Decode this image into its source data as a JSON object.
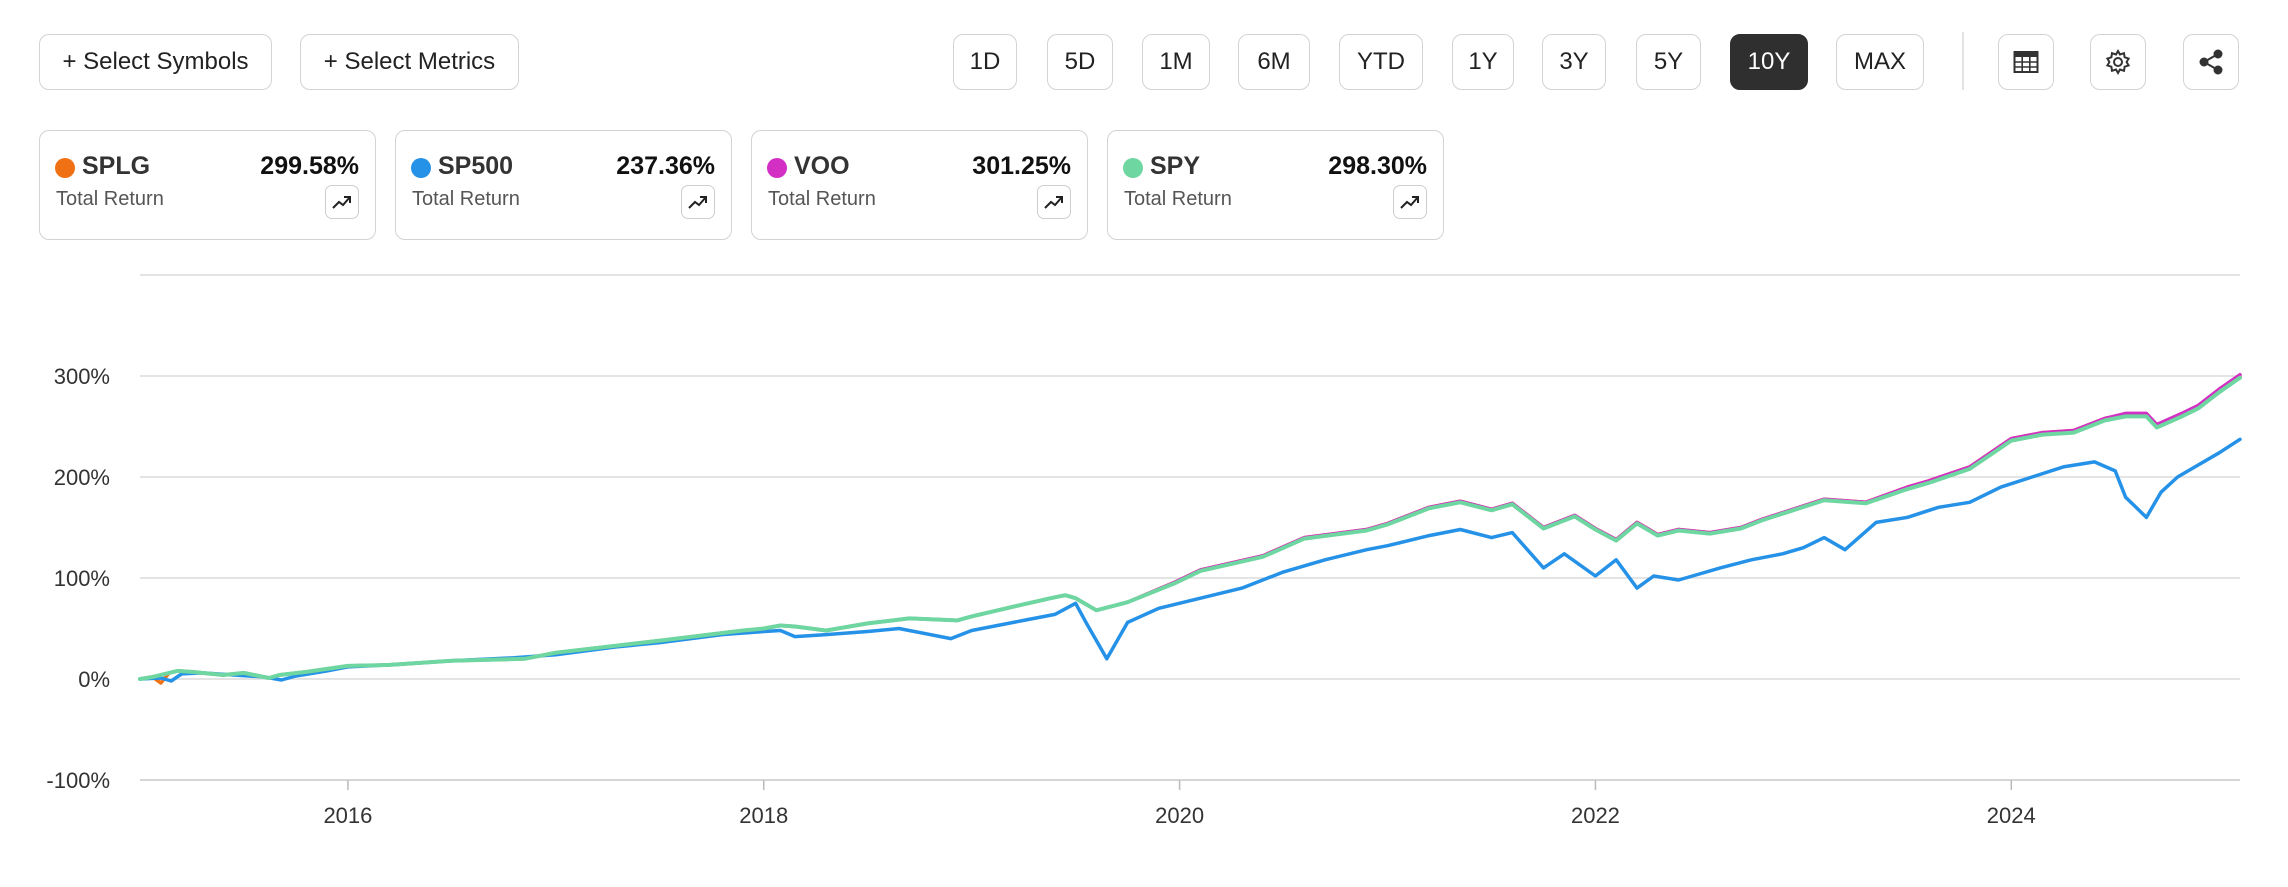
{
  "toolbar": {
    "select_symbols": "+ Select Symbols",
    "select_metrics": "+ Select Metrics",
    "ranges": [
      "1D",
      "5D",
      "1M",
      "6M",
      "YTD",
      "1Y",
      "3Y",
      "5Y",
      "10Y",
      "MAX"
    ],
    "active_range": "10Y",
    "icons": [
      "table-icon",
      "gear-icon",
      "share-icon"
    ]
  },
  "cards": [
    {
      "symbol": "SPLG",
      "value": "299.58%",
      "label": "Total Return",
      "color": "#f07014"
    },
    {
      "symbol": "SP500",
      "value": "237.36%",
      "label": "Total Return",
      "color": "#2592e8"
    },
    {
      "symbol": "VOO",
      "value": "301.25%",
      "label": "Total Return",
      "color": "#d42fc4"
    },
    {
      "symbol": "SPY",
      "value": "298.30%",
      "label": "Total Return",
      "color": "#6ed6a0"
    }
  ],
  "chart_data": {
    "type": "line",
    "title": "",
    "xlabel": "",
    "ylabel": "",
    "ylim": [
      -100,
      400
    ],
    "xlim": [
      2015.0,
      2025.1
    ],
    "yticks": [
      -100,
      0,
      100,
      200,
      300
    ],
    "ytick_labels": [
      "-100%",
      "0%",
      "100%",
      "200%",
      "300%"
    ],
    "xticks": [
      2016,
      2018,
      2020,
      2022,
      2024
    ],
    "xtick_labels": [
      "2016",
      "2018",
      "2020",
      "2022",
      "2024"
    ],
    "grid": true,
    "series": [
      {
        "name": "SPLG",
        "color": "#f07014",
        "x": [
          2015.0,
          2015.06,
          2015.1,
          2015.14,
          2015.18,
          2015.25,
          2015.4,
          2015.5,
          2015.62,
          2015.67,
          2015.8,
          2016.0,
          2016.2,
          2016.5,
          2016.85,
          2017.0,
          2017.5,
          2017.9,
          2018.0,
          2018.08,
          2018.15,
          2018.3,
          2018.5,
          2018.7,
          2018.93,
          2019.0,
          2019.25,
          2019.38,
          2019.45,
          2019.5,
          2019.6,
          2019.75,
          2019.98,
          2020.1,
          2020.4,
          2020.6,
          2020.9,
          2021.0,
          2021.2,
          2021.35,
          2021.5,
          2021.6,
          2021.75,
          2021.9,
          2022.0,
          2022.1,
          2022.2,
          2022.3,
          2022.4,
          2022.55,
          2022.7,
          2022.8,
          2022.95,
          2023.1,
          2023.3,
          2023.5,
          2023.6,
          2023.8,
          2024.0,
          2024.15,
          2024.3,
          2024.45,
          2024.55,
          2024.65,
          2024.7,
          2024.82,
          2024.9,
          2025.0,
          2025.1
        ],
        "y": [
          0,
          2,
          -4,
          6,
          8,
          7,
          4,
          6,
          1,
          4,
          7,
          13,
          14,
          18,
          20,
          26,
          38,
          48,
          50,
          53,
          52,
          48,
          55,
          60,
          58,
          62,
          74,
          80,
          83,
          80,
          68,
          76,
          96,
          108,
          122,
          140,
          148,
          154,
          170,
          176,
          168,
          174,
          150,
          162,
          149,
          138,
          155,
          143,
          148,
          145,
          150,
          158,
          168,
          178,
          175,
          190,
          196,
          210,
          238,
          244,
          246,
          258,
          262,
          262,
          251,
          262,
          270,
          286,
          299.58
        ]
      },
      {
        "name": "SP500",
        "color": "#2592e8",
        "x": [
          2015.0,
          2015.1,
          2015.15,
          2015.2,
          2015.3,
          2015.45,
          2015.6,
          2015.68,
          2015.75,
          2015.9,
          2016.0,
          2016.2,
          2016.5,
          2016.8,
          2017.0,
          2017.3,
          2017.5,
          2017.8,
          2018.0,
          2018.08,
          2018.15,
          2018.3,
          2018.5,
          2018.65,
          2018.9,
          2019.0,
          2019.25,
          2019.4,
          2019.5,
          2019.55,
          2019.65,
          2019.75,
          2019.9,
          2020.1,
          2020.3,
          2020.5,
          2020.7,
          2020.9,
          2021.0,
          2021.2,
          2021.35,
          2021.5,
          2021.6,
          2021.75,
          2021.85,
          2022.0,
          2022.1,
          2022.2,
          2022.28,
          2022.4,
          2022.5,
          2022.6,
          2022.75,
          2022.9,
          2023.0,
          2023.1,
          2023.2,
          2023.35,
          2023.5,
          2023.65,
          2023.8,
          2023.95,
          2024.1,
          2024.25,
          2024.4,
          2024.5,
          2024.55,
          2024.6,
          2024.65,
          2024.72,
          2024.8,
          2024.9,
          2025.0,
          2025.1
        ],
        "y": [
          0,
          1,
          -2,
          5,
          6,
          4,
          2,
          -1,
          3,
          8,
          12,
          14,
          18,
          21,
          24,
          32,
          36,
          44,
          47,
          48,
          42,
          44,
          47,
          50,
          40,
          48,
          58,
          64,
          75,
          56,
          20,
          56,
          70,
          80,
          90,
          106,
          118,
          128,
          132,
          142,
          148,
          140,
          145,
          110,
          124,
          102,
          118,
          90,
          102,
          98,
          104,
          110,
          118,
          124,
          130,
          140,
          128,
          155,
          160,
          170,
          175,
          190,
          200,
          210,
          215,
          206,
          180,
          170,
          160,
          185,
          200,
          212,
          224,
          237.36
        ]
      },
      {
        "name": "VOO",
        "color": "#d42fc4",
        "x": [
          2015.0,
          2015.06,
          2015.14,
          2015.18,
          2015.25,
          2015.4,
          2015.5,
          2015.62,
          2015.67,
          2015.8,
          2016.0,
          2016.2,
          2016.5,
          2016.85,
          2017.0,
          2017.5,
          2017.9,
          2018.0,
          2018.08,
          2018.15,
          2018.3,
          2018.5,
          2018.7,
          2018.93,
          2019.0,
          2019.25,
          2019.38,
          2019.45,
          2019.5,
          2019.6,
          2019.75,
          2019.98,
          2020.1,
          2020.4,
          2020.6,
          2020.9,
          2021.0,
          2021.2,
          2021.35,
          2021.5,
          2021.6,
          2021.75,
          2021.9,
          2022.0,
          2022.1,
          2022.2,
          2022.3,
          2022.4,
          2022.55,
          2022.7,
          2022.8,
          2022.95,
          2023.1,
          2023.3,
          2023.5,
          2023.6,
          2023.8,
          2024.0,
          2024.15,
          2024.3,
          2024.45,
          2024.55,
          2024.65,
          2024.7,
          2024.82,
          2024.9,
          2025.0,
          2025.1
        ],
        "y": [
          0,
          2,
          6,
          8,
          7,
          4,
          6,
          1,
          4,
          7,
          13,
          14,
          18,
          20,
          26,
          38,
          48,
          50,
          53,
          52,
          48,
          55,
          60,
          58,
          62,
          74,
          80,
          83,
          80,
          68,
          76,
          96,
          108,
          122,
          140,
          148,
          154,
          170,
          176,
          168,
          174,
          150,
          162,
          149,
          138,
          155,
          143,
          148,
          145,
          150,
          158,
          168,
          178,
          175,
          190,
          196,
          210,
          238,
          244,
          246,
          258,
          263,
          263,
          252,
          263,
          271,
          287,
          301.25
        ]
      },
      {
        "name": "SPY",
        "color": "#6ed6a0",
        "x": [
          2015.0,
          2015.06,
          2015.14,
          2015.18,
          2015.25,
          2015.4,
          2015.5,
          2015.62,
          2015.67,
          2015.8,
          2016.0,
          2016.2,
          2016.5,
          2016.85,
          2017.0,
          2017.5,
          2017.9,
          2018.0,
          2018.08,
          2018.15,
          2018.3,
          2018.5,
          2018.7,
          2018.93,
          2019.0,
          2019.25,
          2019.38,
          2019.45,
          2019.5,
          2019.6,
          2019.75,
          2019.98,
          2020.1,
          2020.4,
          2020.6,
          2020.9,
          2021.0,
          2021.2,
          2021.35,
          2021.5,
          2021.6,
          2021.75,
          2021.9,
          2022.0,
          2022.1,
          2022.2,
          2022.3,
          2022.4,
          2022.55,
          2022.7,
          2022.8,
          2022.95,
          2023.1,
          2023.3,
          2023.5,
          2023.6,
          2023.8,
          2024.0,
          2024.15,
          2024.3,
          2024.45,
          2024.55,
          2024.65,
          2024.7,
          2024.82,
          2024.9,
          2025.0,
          2025.1
        ],
        "y": [
          0,
          2,
          6,
          8,
          7,
          4,
          6,
          1,
          4,
          7,
          13,
          14,
          18,
          20,
          26,
          38,
          48,
          50,
          53,
          52,
          48,
          55,
          60,
          58,
          62,
          74,
          80,
          83,
          80,
          68,
          76,
          95,
          107,
          121,
          139,
          147,
          153,
          169,
          175,
          167,
          173,
          149,
          161,
          148,
          137,
          154,
          142,
          147,
          144,
          149,
          157,
          167,
          177,
          174,
          188,
          194,
          208,
          236,
          242,
          244,
          256,
          260,
          260,
          249,
          260,
          268,
          284,
          298.3
        ]
      }
    ]
  }
}
